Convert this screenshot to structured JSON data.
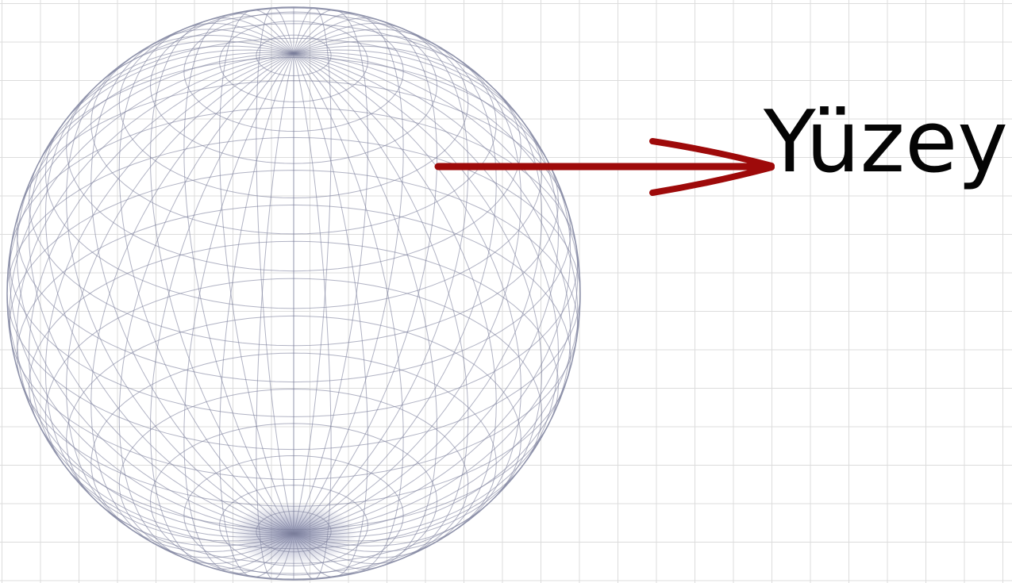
{
  "label": "Yüzey"
}
